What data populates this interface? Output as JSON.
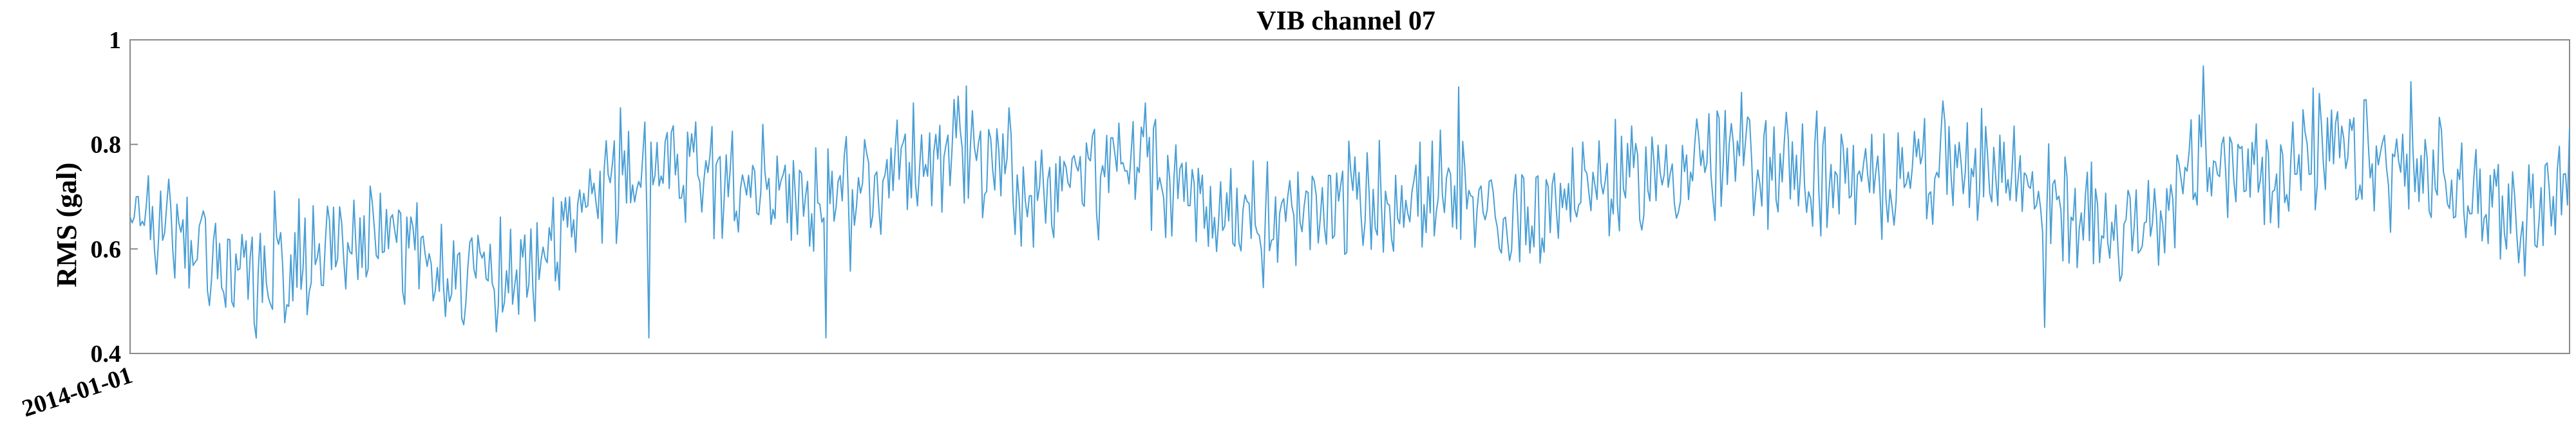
{
  "chart_data": {
    "type": "line",
    "title": "VIB channel 07",
    "xlabel": "",
    "ylabel": "RMS (gal)",
    "x_tick_labels": [
      "2014-01-01"
    ],
    "y_ticks": [
      0.4,
      0.6,
      0.8,
      1
    ],
    "y_tick_labels": [
      "0.4",
      "0.6",
      "0.8",
      "1"
    ],
    "ylim": [
      0.4,
      1.0
    ],
    "grid": false,
    "legend": "none",
    "line_color": "#4a9fd5",
    "n_points": 1200,
    "trend_knots": [
      [
        0,
        0.66
      ],
      [
        60,
        0.6
      ],
      [
        100,
        0.56
      ],
      [
        160,
        0.6
      ],
      [
        220,
        0.61
      ],
      [
        280,
        0.55
      ],
      [
        330,
        0.59
      ],
      [
        390,
        0.71
      ],
      [
        430,
        0.78
      ],
      [
        520,
        0.72
      ],
      [
        580,
        0.68
      ],
      [
        650,
        0.8
      ],
      [
        690,
        0.78
      ],
      [
        750,
        0.68
      ],
      [
        820,
        0.78
      ],
      [
        880,
        0.69
      ],
      [
        940,
        0.64
      ],
      [
        1000,
        0.69
      ],
      [
        1060,
        0.7
      ],
      [
        1130,
        0.65
      ],
      [
        1190,
        0.72
      ],
      [
        1250,
        0.74
      ],
      [
        1310,
        0.78
      ],
      [
        1370,
        0.75
      ],
      [
        1420,
        0.71
      ],
      [
        1460,
        0.77
      ],
      [
        1540,
        0.75
      ],
      [
        1600,
        0.66
      ],
      [
        1640,
        0.64
      ],
      [
        1700,
        0.75
      ],
      [
        1760,
        0.76
      ],
      [
        1820,
        0.78
      ],
      [
        1880,
        0.73
      ],
      [
        1920,
        0.7
      ],
      [
        1960,
        0.66
      ],
      [
        2000,
        0.72
      ]
    ],
    "extremes": [
      {
        "x": 0.285,
        "y": 0.43
      },
      {
        "x": 0.213,
        "y": 0.43
      },
      {
        "x": 0.36,
        "y": 0.87
      },
      {
        "x": 0.545,
        "y": 0.91
      },
      {
        "x": 0.785,
        "y": 0.45
      },
      {
        "x": 0.85,
        "y": 0.95
      },
      {
        "x": 0.935,
        "y": 0.92
      }
    ]
  }
}
